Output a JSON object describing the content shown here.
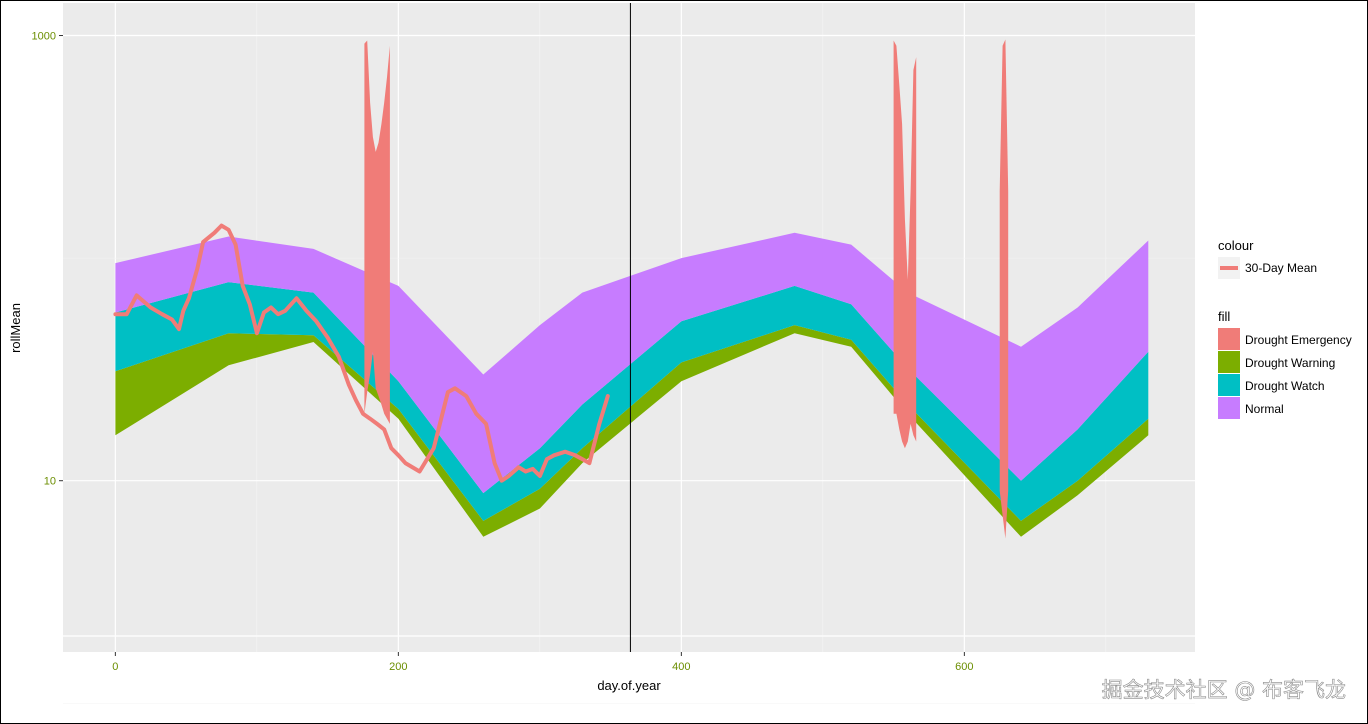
{
  "chart_data": {
    "type": "area",
    "xlabel": "day.of.year",
    "ylabel": "rollMean",
    "x_ticks": [
      0,
      200,
      400,
      600
    ],
    "x_tick_labels": [
      "0",
      "200",
      "400",
      "600"
    ],
    "y_scale": "log10",
    "y_ticks": [
      10,
      1000
    ],
    "y_tick_labels": [
      "10",
      "1000"
    ],
    "xlim": [
      -37,
      763
    ],
    "ylim": [
      1.7,
      1400
    ],
    "vline_x": 364,
    "grid": true,
    "legend": {
      "colour_title": "colour",
      "colour_entries": [
        {
          "label": "30-Day Mean",
          "color": "#F07C78"
        }
      ],
      "fill_title": "fill",
      "fill_entries": [
        {
          "label": "Drought Emergency",
          "color": "#F07C78"
        },
        {
          "label": "Drought Warning",
          "color": "#7CAE00"
        },
        {
          "label": "Drought Watch",
          "color": "#00BFC4"
        },
        {
          "label": "Normal",
          "color": "#C77CFF"
        }
      ]
    },
    "bands": [
      {
        "name": "Drought Warning",
        "color": "#7CAE00",
        "x": [
          0,
          80,
          140,
          200,
          260,
          300,
          330,
          400,
          480,
          520,
          560,
          640,
          680,
          730
        ],
        "lower": [
          16,
          33,
          42,
          19,
          5.6,
          7.5,
          12,
          28,
          46,
          40,
          20,
          5.6,
          8.6,
          16
        ],
        "upper": [
          31,
          46,
          45,
          21,
          6.6,
          9.2,
          14,
          34,
          50,
          43,
          22,
          6.6,
          10,
          19
        ]
      },
      {
        "name": "Drought Watch",
        "color": "#00BFC4",
        "x": [
          0,
          80,
          140,
          200,
          260,
          300,
          330,
          400,
          480,
          520,
          560,
          640,
          680,
          730
        ],
        "lower": [
          31,
          46,
          45,
          21,
          6.6,
          9.2,
          14,
          34,
          50,
          43,
          22,
          6.6,
          10,
          19
        ],
        "upper": [
          57,
          78,
          70,
          28,
          8.8,
          14,
          22,
          52,
          75,
          62,
          32,
          10,
          17,
          38
        ]
      },
      {
        "name": "Normal",
        "color": "#C77CFF",
        "x": [
          0,
          80,
          140,
          200,
          260,
          300,
          330,
          400,
          480,
          520,
          560,
          640,
          680,
          730
        ],
        "lower": [
          57,
          78,
          70,
          28,
          8.8,
          14,
          22,
          52,
          75,
          62,
          32,
          10,
          17,
          38
        ],
        "upper": [
          95,
          125,
          110,
          75,
          30,
          50,
          70,
          100,
          130,
          115,
          70,
          40,
          60,
          120
        ]
      }
    ],
    "emergency_spikes": [
      {
        "x": [
          176,
          178,
          180,
          182,
          184,
          186,
          188,
          190,
          192,
          194,
          194,
          192,
          190,
          188,
          186,
          184,
          182,
          180,
          178,
          176
        ],
        "y": [
          20,
          25,
          30,
          38,
          26,
          24,
          22,
          20,
          19,
          18,
          900,
          650,
          500,
          400,
          330,
          300,
          350,
          500,
          950,
          920
        ]
      },
      {
        "x": [
          550,
          552,
          554,
          556,
          558,
          560,
          562,
          564,
          566,
          566,
          564,
          562,
          560,
          558,
          556,
          554,
          552,
          550
        ],
        "y": [
          20,
          20,
          17,
          15,
          14,
          15,
          18,
          16,
          15,
          800,
          700,
          200,
          80,
          150,
          400,
          600,
          900,
          950
        ]
      },
      {
        "x": [
          625,
          627,
          629,
          631,
          631,
          629,
          627,
          625
        ],
        "y": [
          9,
          7,
          5.5,
          9,
          200,
          960,
          900,
          200
        ]
      }
    ],
    "series": [
      {
        "name": "30-Day Mean",
        "color": "#F07C78",
        "x": [
          0,
          8,
          15,
          25,
          33,
          40,
          45,
          48,
          52,
          58,
          62,
          70,
          75,
          80,
          85,
          90,
          95,
          100,
          105,
          110,
          115,
          120,
          128,
          135,
          142,
          150,
          158,
          165,
          170,
          175,
          180,
          185,
          190,
          195,
          200,
          205,
          215,
          225,
          235,
          240,
          248,
          255,
          262,
          268,
          273,
          278,
          285,
          290,
          295,
          300,
          305,
          310,
          318,
          325,
          330,
          335,
          342,
          348
        ],
        "y": [
          56,
          56,
          68,
          60,
          56,
          53,
          48,
          58,
          66,
          90,
          118,
          130,
          140,
          134,
          115,
          75,
          62,
          46,
          57,
          60,
          56,
          58,
          66,
          58,
          52,
          44,
          36,
          27,
          23,
          20,
          19,
          18,
          17,
          14,
          13,
          12,
          11,
          14,
          25,
          26,
          24,
          20,
          18,
          12,
          10,
          10.5,
          11.5,
          11,
          11.3,
          10.5,
          12.5,
          13,
          13.5,
          13,
          12.5,
          12,
          18,
          24
        ]
      }
    ]
  },
  "watermark": "掘金技术社区 @ 布客飞龙"
}
